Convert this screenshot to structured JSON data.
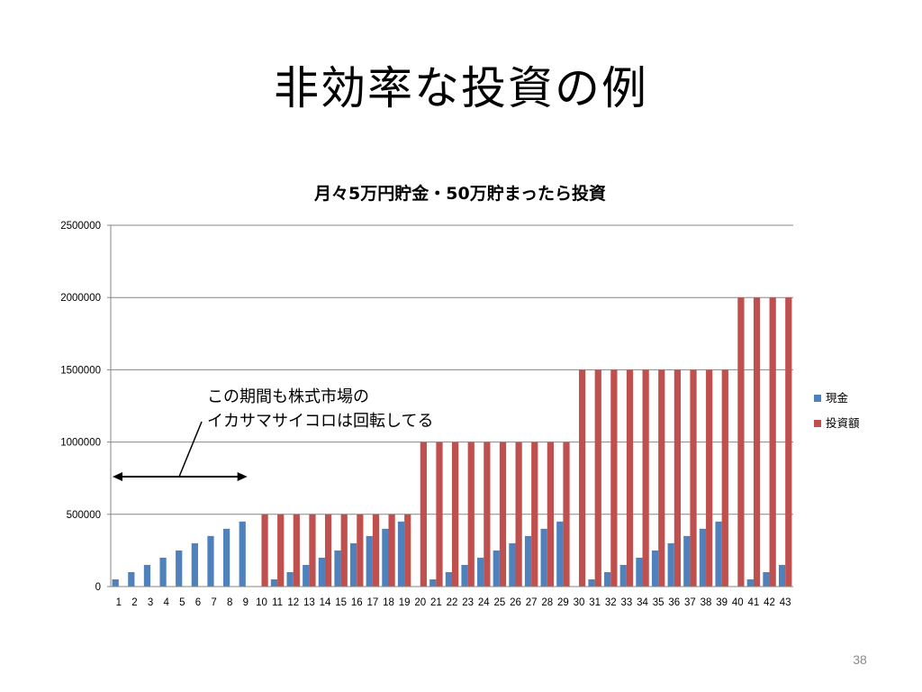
{
  "slide": {
    "title": "非効率な投資の例",
    "page_number": "38"
  },
  "colors": {
    "cash": "#4f81bd",
    "investment": "#c0504d",
    "axis": "#868686",
    "grid": "#868686"
  },
  "chart_data": {
    "type": "bar",
    "title": "月々5万円貯金・50万貯まったら投資",
    "xlabel": "",
    "ylabel": "",
    "ylim": [
      0,
      2500000
    ],
    "yticks": [
      "0",
      "500000",
      "1000000",
      "1500000",
      "2000000",
      "2500000"
    ],
    "ytick_values": [
      0,
      500000,
      1000000,
      1500000,
      2000000,
      2500000
    ],
    "grid": true,
    "legend_position": "right",
    "categories": [
      "1",
      "2",
      "3",
      "4",
      "5",
      "6",
      "7",
      "8",
      "9",
      "10",
      "11",
      "12",
      "13",
      "14",
      "15",
      "16",
      "17",
      "18",
      "19",
      "20",
      "21",
      "22",
      "23",
      "24",
      "25",
      "26",
      "27",
      "28",
      "29",
      "30",
      "31",
      "32",
      "33",
      "34",
      "35",
      "36",
      "37",
      "38",
      "39",
      "40",
      "41",
      "42",
      "43"
    ],
    "series": [
      {
        "name": "現金",
        "color_key": "cash",
        "values": [
          50000,
          100000,
          150000,
          200000,
          250000,
          300000,
          350000,
          400000,
          450000,
          0,
          50000,
          100000,
          150000,
          200000,
          250000,
          300000,
          350000,
          400000,
          450000,
          0,
          50000,
          100000,
          150000,
          200000,
          250000,
          300000,
          350000,
          400000,
          450000,
          0,
          50000,
          100000,
          150000,
          200000,
          250000,
          300000,
          350000,
          400000,
          450000,
          0,
          50000,
          100000,
          150000
        ]
      },
      {
        "name": "投資額",
        "color_key": "investment",
        "values": [
          0,
          0,
          0,
          0,
          0,
          0,
          0,
          0,
          0,
          500000,
          500000,
          500000,
          500000,
          500000,
          500000,
          500000,
          500000,
          500000,
          500000,
          1000000,
          1000000,
          1000000,
          1000000,
          1000000,
          1000000,
          1000000,
          1000000,
          1000000,
          1000000,
          1500000,
          1500000,
          1500000,
          1500000,
          1500000,
          1500000,
          1500000,
          1500000,
          1500000,
          1500000,
          2000000,
          2000000,
          2000000,
          2000000
        ]
      }
    ],
    "annotation": {
      "lines": [
        "この期間も株式市場の",
        "イカサマサイコロは回転してる"
      ],
      "arrow_from_category": "1",
      "arrow_to_category": "9"
    }
  }
}
